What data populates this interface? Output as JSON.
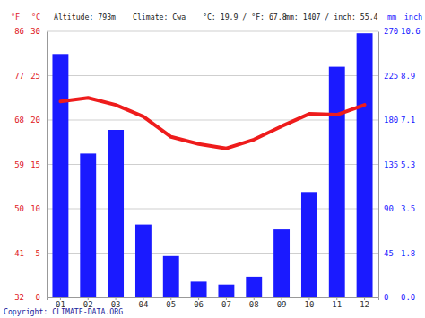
{
  "chart_data": {
    "type": "bar",
    "annotations": [
      "Altitude: 793m",
      "Climate: Cwa",
      "°C: 19.9 / °F: 67.8",
      "mm: 1407 / inch: 55.4",
      "Copyright: CLIMATE-DATA.ORG"
    ],
    "categories": [
      "01",
      "02",
      "03",
      "04",
      "05",
      "06",
      "07",
      "08",
      "09",
      "10",
      "11",
      "12"
    ],
    "series": [
      {
        "type": "bar",
        "axis": "y2",
        "color": "#1a1aff",
        "values": [
          247,
          146,
          170,
          74,
          42,
          16,
          13,
          21,
          69,
          107,
          234,
          268
        ]
      },
      {
        "type": "line",
        "color": "#ee1c1c",
        "values": [
          22.1,
          22.5,
          21.7,
          20.4,
          18.1,
          17.3,
          16.8,
          17.8,
          19.3,
          20.7,
          20.6,
          21.7
        ]
      }
    ],
    "ylabel": "°C",
    "ylim": [
      0,
      30
    ],
    "yticks": [
      0,
      5,
      10,
      15,
      20,
      25,
      30
    ],
    "y2label": "mm",
    "y2lim": [
      0,
      270
    ],
    "y2ticks": [
      0,
      45,
      90,
      135,
      180,
      225,
      270
    ],
    "y3label": "°F",
    "y3lim": [
      32,
      86
    ],
    "y3ticks": [
      32,
      41,
      50,
      59,
      68,
      77,
      86
    ],
    "y4label": "inch",
    "y4lim": [
      0,
      10.63
    ],
    "y4ticks": [
      {
        "value": 0,
        "label": "0.0"
      },
      {
        "value": 1.77,
        "label": "1.8"
      },
      {
        "value": 3.54,
        "label": "3.5"
      },
      {
        "value": 5.31,
        "label": "5.3"
      },
      {
        "value": 7.09,
        "label": "7.1"
      },
      {
        "value": 8.86,
        "label": "8.9"
      },
      {
        "value": 10.63,
        "label": "10.6"
      }
    ],
    "grid": true
  }
}
